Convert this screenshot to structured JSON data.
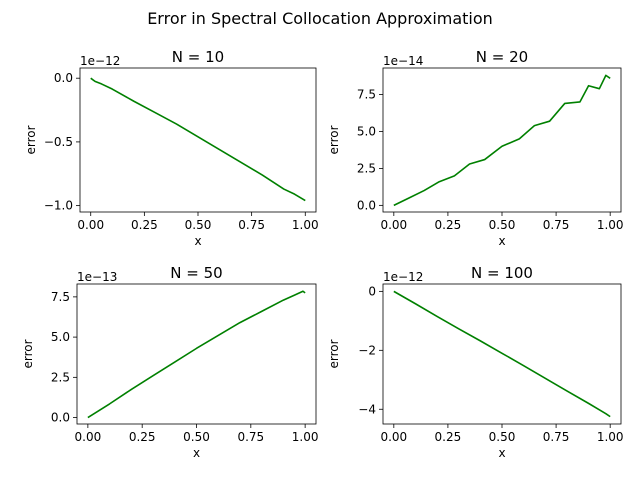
{
  "figure": {
    "title": "Error in Spectral Collocation Approximation"
  },
  "style": {
    "line_color": "#008000"
  },
  "chart_data": [
    {
      "type": "line",
      "title": "N = 10",
      "xlabel": "x",
      "ylabel": "error",
      "offset_text": "1e−12",
      "xlim": [
        -0.05,
        1.05
      ],
      "ylim": [
        -1.05,
        0.08
      ],
      "xticks": [
        0.0,
        0.25,
        0.5,
        0.75,
        1.0
      ],
      "xtick_labels": [
        "0.00",
        "0.25",
        "0.50",
        "0.75",
        "1.00"
      ],
      "yticks": [
        -1.0,
        -0.5,
        0.0
      ],
      "ytick_labels": [
        "−1.0",
        "−0.5",
        "0.0"
      ],
      "series": [
        {
          "x": [
            0,
            0.02,
            0.05,
            0.1,
            0.2,
            0.3,
            0.4,
            0.5,
            0.6,
            0.7,
            0.8,
            0.85,
            0.9,
            0.95,
            1.0
          ],
          "y": [
            0,
            -0.025,
            -0.045,
            -0.085,
            -0.18,
            -0.27,
            -0.36,
            -0.46,
            -0.56,
            -0.66,
            -0.76,
            -0.815,
            -0.87,
            -0.91,
            -0.96
          ]
        }
      ]
    },
    {
      "type": "line",
      "title": "N = 20",
      "xlabel": "x",
      "ylabel": "error",
      "offset_text": "1e−14",
      "xlim": [
        -0.05,
        1.05
      ],
      "ylim": [
        -0.45,
        9.3
      ],
      "xticks": [
        0.0,
        0.25,
        0.5,
        0.75,
        1.0
      ],
      "xtick_labels": [
        "0.00",
        "0.25",
        "0.50",
        "0.75",
        "1.00"
      ],
      "yticks": [
        0.0,
        2.5,
        5.0,
        7.5
      ],
      "ytick_labels": [
        "0.0",
        "2.5",
        "5.0",
        "7.5"
      ],
      "series": [
        {
          "x": [
            0,
            0.07,
            0.14,
            0.21,
            0.28,
            0.35,
            0.42,
            0.5,
            0.58,
            0.65,
            0.72,
            0.79,
            0.86,
            0.9,
            0.95,
            0.98,
            1.0
          ],
          "y": [
            0,
            0.5,
            1.0,
            1.6,
            2.0,
            2.8,
            3.1,
            4.0,
            4.5,
            5.4,
            5.7,
            6.9,
            7.0,
            8.1,
            7.9,
            8.8,
            8.6
          ]
        }
      ]
    },
    {
      "type": "line",
      "title": "N = 50",
      "xlabel": "x",
      "ylabel": "error",
      "offset_text": "1e−13",
      "xlim": [
        -0.05,
        1.05
      ],
      "ylim": [
        -0.4,
        8.3
      ],
      "xticks": [
        0.0,
        0.25,
        0.5,
        0.75,
        1.0
      ],
      "xtick_labels": [
        "0.00",
        "0.25",
        "0.50",
        "0.75",
        "1.00"
      ],
      "yticks": [
        0.0,
        2.5,
        5.0,
        7.5
      ],
      "ytick_labels": [
        "0.0",
        "2.5",
        "5.0",
        "7.5"
      ],
      "series": [
        {
          "x": [
            0,
            0.1,
            0.2,
            0.3,
            0.4,
            0.5,
            0.6,
            0.7,
            0.8,
            0.9,
            0.95,
            0.99,
            1.0
          ],
          "y": [
            0,
            0.85,
            1.75,
            2.6,
            3.45,
            4.3,
            5.1,
            5.9,
            6.6,
            7.3,
            7.6,
            7.85,
            7.75
          ]
        }
      ]
    },
    {
      "type": "line",
      "title": "N = 100",
      "xlabel": "x",
      "ylabel": "error",
      "offset_text": "1e−12",
      "xlim": [
        -0.05,
        1.05
      ],
      "ylim": [
        -4.5,
        0.25
      ],
      "xticks": [
        0.0,
        0.25,
        0.5,
        0.75,
        1.0
      ],
      "xtick_labels": [
        "0.00",
        "0.25",
        "0.50",
        "0.75",
        "1.00"
      ],
      "yticks": [
        -4,
        -2,
        0
      ],
      "ytick_labels": [
        "−4",
        "−2",
        "0"
      ],
      "series": [
        {
          "x": [
            0,
            0.1,
            0.2,
            0.3,
            0.4,
            0.5,
            0.6,
            0.7,
            0.8,
            0.9,
            0.95,
            0.98,
            1.0
          ],
          "y": [
            0,
            -0.42,
            -0.85,
            -1.27,
            -1.68,
            -2.1,
            -2.52,
            -2.95,
            -3.38,
            -3.8,
            -4.02,
            -4.15,
            -4.25
          ]
        }
      ]
    }
  ]
}
